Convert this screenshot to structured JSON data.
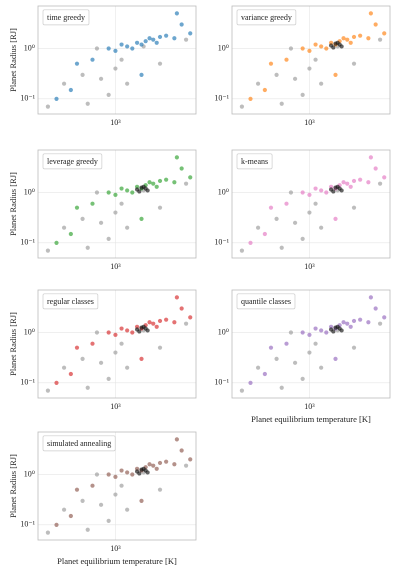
{
  "chart_data": [
    {
      "type": "scatter",
      "title": "time greedy",
      "ylabel": "Planet Radius [RJ]",
      "log": true,
      "grid": true,
      "xlim": [
        300,
        3500
      ],
      "ylim": [
        0.05,
        7
      ],
      "xticks": [
        {
          "value": 1000,
          "label": "10³"
        }
      ],
      "yticks": [
        {
          "value": 0.1,
          "label": "10⁻¹"
        },
        {
          "value": 1,
          "label": "10⁰"
        }
      ],
      "series": [
        {
          "color": "#999999",
          "x": [
            1550,
            3000,
            600,
            800,
            350,
            450,
            1000,
            1200,
            900,
            650,
            2000,
            750,
            1100
          ],
          "y": [
            1.1,
            1.5,
            0.3,
            0.25,
            0.07,
            0.2,
            0.4,
            0.2,
            0.12,
            0.08,
            0.5,
            1.0,
            0.6
          ]
        },
        {
          "color": "#1f77b4",
          "x": [
            1200,
            1400,
            1500,
            1600,
            1800,
            1300,
            1700,
            2000,
            1100,
            1900,
            2200,
            2500,
            1000,
            900,
            2800,
            2600,
            700,
            500,
            400,
            1500,
            550,
            3200
          ],
          "y": [
            1.1,
            1.3,
            1.2,
            1.4,
            1.5,
            1.0,
            1.6,
            1.7,
            1.2,
            1.3,
            1.8,
            1.6,
            0.9,
            1.0,
            3,
            5,
            0.6,
            0.15,
            0.1,
            0.3,
            0.5,
            2.0
          ]
        }
      ]
    },
    {
      "type": "scatter",
      "title": "variance greedy",
      "log": true,
      "grid": true,
      "xlim": [
        300,
        3500
      ],
      "ylim": [
        0.05,
        7
      ],
      "xticks": [
        {
          "value": 1000,
          "label": "10³"
        }
      ],
      "yticks": [
        {
          "value": 0.1,
          "label": "10⁻¹"
        },
        {
          "value": 1,
          "label": "10⁰"
        }
      ],
      "series": [
        {
          "color": "#999999",
          "x": [
            1550,
            3000,
            600,
            800,
            350,
            450,
            1000,
            1200,
            900,
            650,
            2000,
            750,
            1100
          ],
          "y": [
            1.1,
            1.5,
            0.3,
            0.25,
            0.07,
            0.2,
            0.4,
            0.2,
            0.12,
            0.08,
            0.5,
            1.0,
            0.6
          ]
        },
        {
          "color": "#ff7f0e",
          "x": [
            1200,
            1400,
            1500,
            1600,
            1800,
            1300,
            1700,
            2000,
            1100,
            1900,
            2200,
            2500,
            1000,
            900,
            2800,
            2600,
            700,
            500,
            400,
            1500,
            550,
            3200
          ],
          "y": [
            1.1,
            1.3,
            1.2,
            1.4,
            1.5,
            1.0,
            1.6,
            1.7,
            1.2,
            1.3,
            1.8,
            1.6,
            0.9,
            1.0,
            3,
            5,
            0.6,
            0.15,
            0.1,
            0.3,
            0.5,
            2.0
          ]
        },
        {
          "color": "#111111",
          "x": [
            1400,
            1500,
            1600,
            1450,
            1550,
            1650
          ],
          "y": [
            1.15,
            1.25,
            1.2,
            1.05,
            1.3,
            1.1
          ]
        }
      ]
    },
    {
      "type": "scatter",
      "title": "leverage greedy",
      "ylabel": "Planet Radius [RJ]",
      "log": true,
      "grid": true,
      "xlim": [
        300,
        3500
      ],
      "ylim": [
        0.05,
        7
      ],
      "xticks": [
        {
          "value": 1000,
          "label": "10³"
        }
      ],
      "yticks": [
        {
          "value": 0.1,
          "label": "10⁻¹"
        },
        {
          "value": 1,
          "label": "10⁰"
        }
      ],
      "series": [
        {
          "color": "#999999",
          "x": [
            1550,
            3000,
            600,
            800,
            350,
            450,
            1000,
            1200,
            900,
            650,
            2000,
            750,
            1100
          ],
          "y": [
            1.1,
            1.5,
            0.3,
            0.25,
            0.07,
            0.2,
            0.4,
            0.2,
            0.12,
            0.08,
            0.5,
            1.0,
            0.6
          ]
        },
        {
          "color": "#2ca02c",
          "x": [
            1200,
            1400,
            1500,
            1600,
            1800,
            1300,
            1700,
            2000,
            1100,
            1900,
            2200,
            2500,
            1000,
            900,
            2800,
            2600,
            700,
            500,
            400,
            1500,
            550,
            3200
          ],
          "y": [
            1.1,
            1.3,
            1.2,
            1.4,
            1.5,
            1.0,
            1.6,
            1.7,
            1.2,
            1.3,
            1.8,
            1.6,
            0.9,
            1.0,
            3,
            5,
            0.6,
            0.15,
            0.1,
            0.3,
            0.5,
            2.0
          ]
        },
        {
          "color": "#111111",
          "x": [
            1400,
            1500,
            1600,
            1450,
            1550,
            1650
          ],
          "y": [
            1.15,
            1.25,
            1.2,
            1.05,
            1.3,
            1.1
          ]
        }
      ]
    },
    {
      "type": "scatter",
      "title": "k-means",
      "log": true,
      "grid": true,
      "xlim": [
        300,
        3500
      ],
      "ylim": [
        0.05,
        7
      ],
      "xticks": [
        {
          "value": 1000,
          "label": "10³"
        }
      ],
      "yticks": [
        {
          "value": 0.1,
          "label": "10⁻¹"
        },
        {
          "value": 1,
          "label": "10⁰"
        }
      ],
      "series": [
        {
          "color": "#999999",
          "x": [
            1550,
            3000,
            600,
            800,
            350,
            450,
            1000,
            1200,
            900,
            650,
            2000,
            750,
            1100
          ],
          "y": [
            1.1,
            1.5,
            0.3,
            0.25,
            0.07,
            0.2,
            0.4,
            0.2,
            0.12,
            0.08,
            0.5,
            1.0,
            0.6
          ]
        },
        {
          "color": "#e377c2",
          "x": [
            1200,
            1400,
            1500,
            1600,
            1800,
            1300,
            1700,
            2000,
            1100,
            1900,
            2200,
            2500,
            1000,
            900,
            2800,
            2600,
            700,
            500,
            400,
            1500,
            550,
            3200
          ],
          "y": [
            1.1,
            1.3,
            1.2,
            1.4,
            1.5,
            1.0,
            1.6,
            1.7,
            1.2,
            1.3,
            1.8,
            1.6,
            0.9,
            1.0,
            3,
            5,
            0.6,
            0.15,
            0.1,
            0.3,
            0.5,
            2.0
          ]
        },
        {
          "color": "#111111",
          "x": [
            1400,
            1500,
            1600,
            1450,
            1550,
            1650
          ],
          "y": [
            1.15,
            1.25,
            1.2,
            1.05,
            1.3,
            1.1
          ]
        }
      ]
    },
    {
      "type": "scatter",
      "title": "regular classes",
      "ylabel": "Planet Radius [RJ]",
      "log": true,
      "grid": true,
      "xlim": [
        300,
        3500
      ],
      "ylim": [
        0.05,
        7
      ],
      "xticks": [
        {
          "value": 1000,
          "label": "10³"
        }
      ],
      "yticks": [
        {
          "value": 0.1,
          "label": "10⁻¹"
        },
        {
          "value": 1,
          "label": "10⁰"
        }
      ],
      "series": [
        {
          "color": "#999999",
          "x": [
            1550,
            3000,
            600,
            800,
            350,
            450,
            1000,
            1200,
            900,
            650,
            2000,
            750,
            1100
          ],
          "y": [
            1.1,
            1.5,
            0.3,
            0.25,
            0.07,
            0.2,
            0.4,
            0.2,
            0.12,
            0.08,
            0.5,
            1.0,
            0.6
          ]
        },
        {
          "color": "#d62728",
          "x": [
            1200,
            1400,
            1500,
            1600,
            1800,
            1300,
            1700,
            2000,
            1100,
            1900,
            2200,
            2500,
            1000,
            900,
            2800,
            2600,
            700,
            500,
            400,
            1500,
            550,
            3200
          ],
          "y": [
            1.1,
            1.3,
            1.2,
            1.4,
            1.5,
            1.0,
            1.6,
            1.7,
            1.2,
            1.3,
            1.8,
            1.6,
            0.9,
            1.0,
            3,
            5,
            0.6,
            0.15,
            0.1,
            0.3,
            0.5,
            2.0
          ]
        },
        {
          "color": "#111111",
          "x": [
            1400,
            1500,
            1600,
            1450,
            1550,
            1650
          ],
          "y": [
            1.15,
            1.25,
            1.2,
            1.05,
            1.3,
            1.1
          ]
        }
      ]
    },
    {
      "type": "scatter",
      "title": "quantile classes",
      "xlabel": "Planet equilibrium temperature [K]",
      "log": true,
      "grid": true,
      "xlim": [
        300,
        3500
      ],
      "ylim": [
        0.05,
        7
      ],
      "xticks": [
        {
          "value": 1000,
          "label": "10³"
        }
      ],
      "yticks": [
        {
          "value": 0.1,
          "label": "10⁻¹"
        },
        {
          "value": 1,
          "label": "10⁰"
        }
      ],
      "series": [
        {
          "color": "#999999",
          "x": [
            1550,
            3000,
            600,
            800,
            350,
            450,
            1000,
            1200,
            900,
            650,
            2000,
            750,
            1100
          ],
          "y": [
            1.1,
            1.5,
            0.3,
            0.25,
            0.07,
            0.2,
            0.4,
            0.2,
            0.12,
            0.08,
            0.5,
            1.0,
            0.6
          ]
        },
        {
          "color": "#9467bd",
          "x": [
            1200,
            1400,
            1500,
            1600,
            1800,
            1300,
            1700,
            2000,
            1100,
            1900,
            2200,
            2500,
            1000,
            900,
            2800,
            2600,
            700,
            500,
            400,
            1500,
            550,
            3200
          ],
          "y": [
            1.1,
            1.3,
            1.2,
            1.4,
            1.5,
            1.0,
            1.6,
            1.7,
            1.2,
            1.3,
            1.8,
            1.6,
            0.9,
            1.0,
            3,
            5,
            0.6,
            0.15,
            0.1,
            0.3,
            0.5,
            2.0
          ]
        },
        {
          "color": "#111111",
          "x": [
            1400,
            1500,
            1600,
            1450,
            1550,
            1650
          ],
          "y": [
            1.15,
            1.25,
            1.2,
            1.05,
            1.3,
            1.1
          ]
        }
      ]
    },
    {
      "type": "scatter",
      "title": "simulated annealing",
      "ylabel": "Planet Radius [RJ]",
      "xlabel": "Planet equilibrium temperature [K]",
      "log": true,
      "grid": true,
      "xlim": [
        300,
        3500
      ],
      "ylim": [
        0.05,
        7
      ],
      "xticks": [
        {
          "value": 1000,
          "label": "10³"
        }
      ],
      "yticks": [
        {
          "value": 0.1,
          "label": "10⁻¹"
        },
        {
          "value": 1,
          "label": "10⁰"
        }
      ],
      "series": [
        {
          "color": "#999999",
          "x": [
            1550,
            3000,
            600,
            800,
            350,
            450,
            1000,
            1200,
            900,
            650,
            2000,
            750,
            1100
          ],
          "y": [
            1.1,
            1.5,
            0.3,
            0.25,
            0.07,
            0.2,
            0.4,
            0.2,
            0.12,
            0.08,
            0.5,
            1.0,
            0.6
          ]
        },
        {
          "color": "#8c564b",
          "x": [
            1200,
            1400,
            1500,
            1600,
            1800,
            1300,
            1700,
            2000,
            1100,
            1900,
            2200,
            2500,
            1000,
            900,
            2800,
            2600,
            700,
            500,
            400,
            1500,
            550,
            3200
          ],
          "y": [
            1.1,
            1.3,
            1.2,
            1.4,
            1.5,
            1.0,
            1.6,
            1.7,
            1.2,
            1.3,
            1.8,
            1.6,
            0.9,
            1.0,
            3,
            5,
            0.6,
            0.15,
            0.1,
            0.3,
            0.5,
            2.0
          ]
        },
        {
          "color": "#111111",
          "x": [
            1400,
            1500,
            1600,
            1450,
            1550,
            1650
          ],
          "y": [
            1.15,
            1.25,
            1.2,
            1.05,
            1.3,
            1.1
          ]
        }
      ]
    }
  ]
}
